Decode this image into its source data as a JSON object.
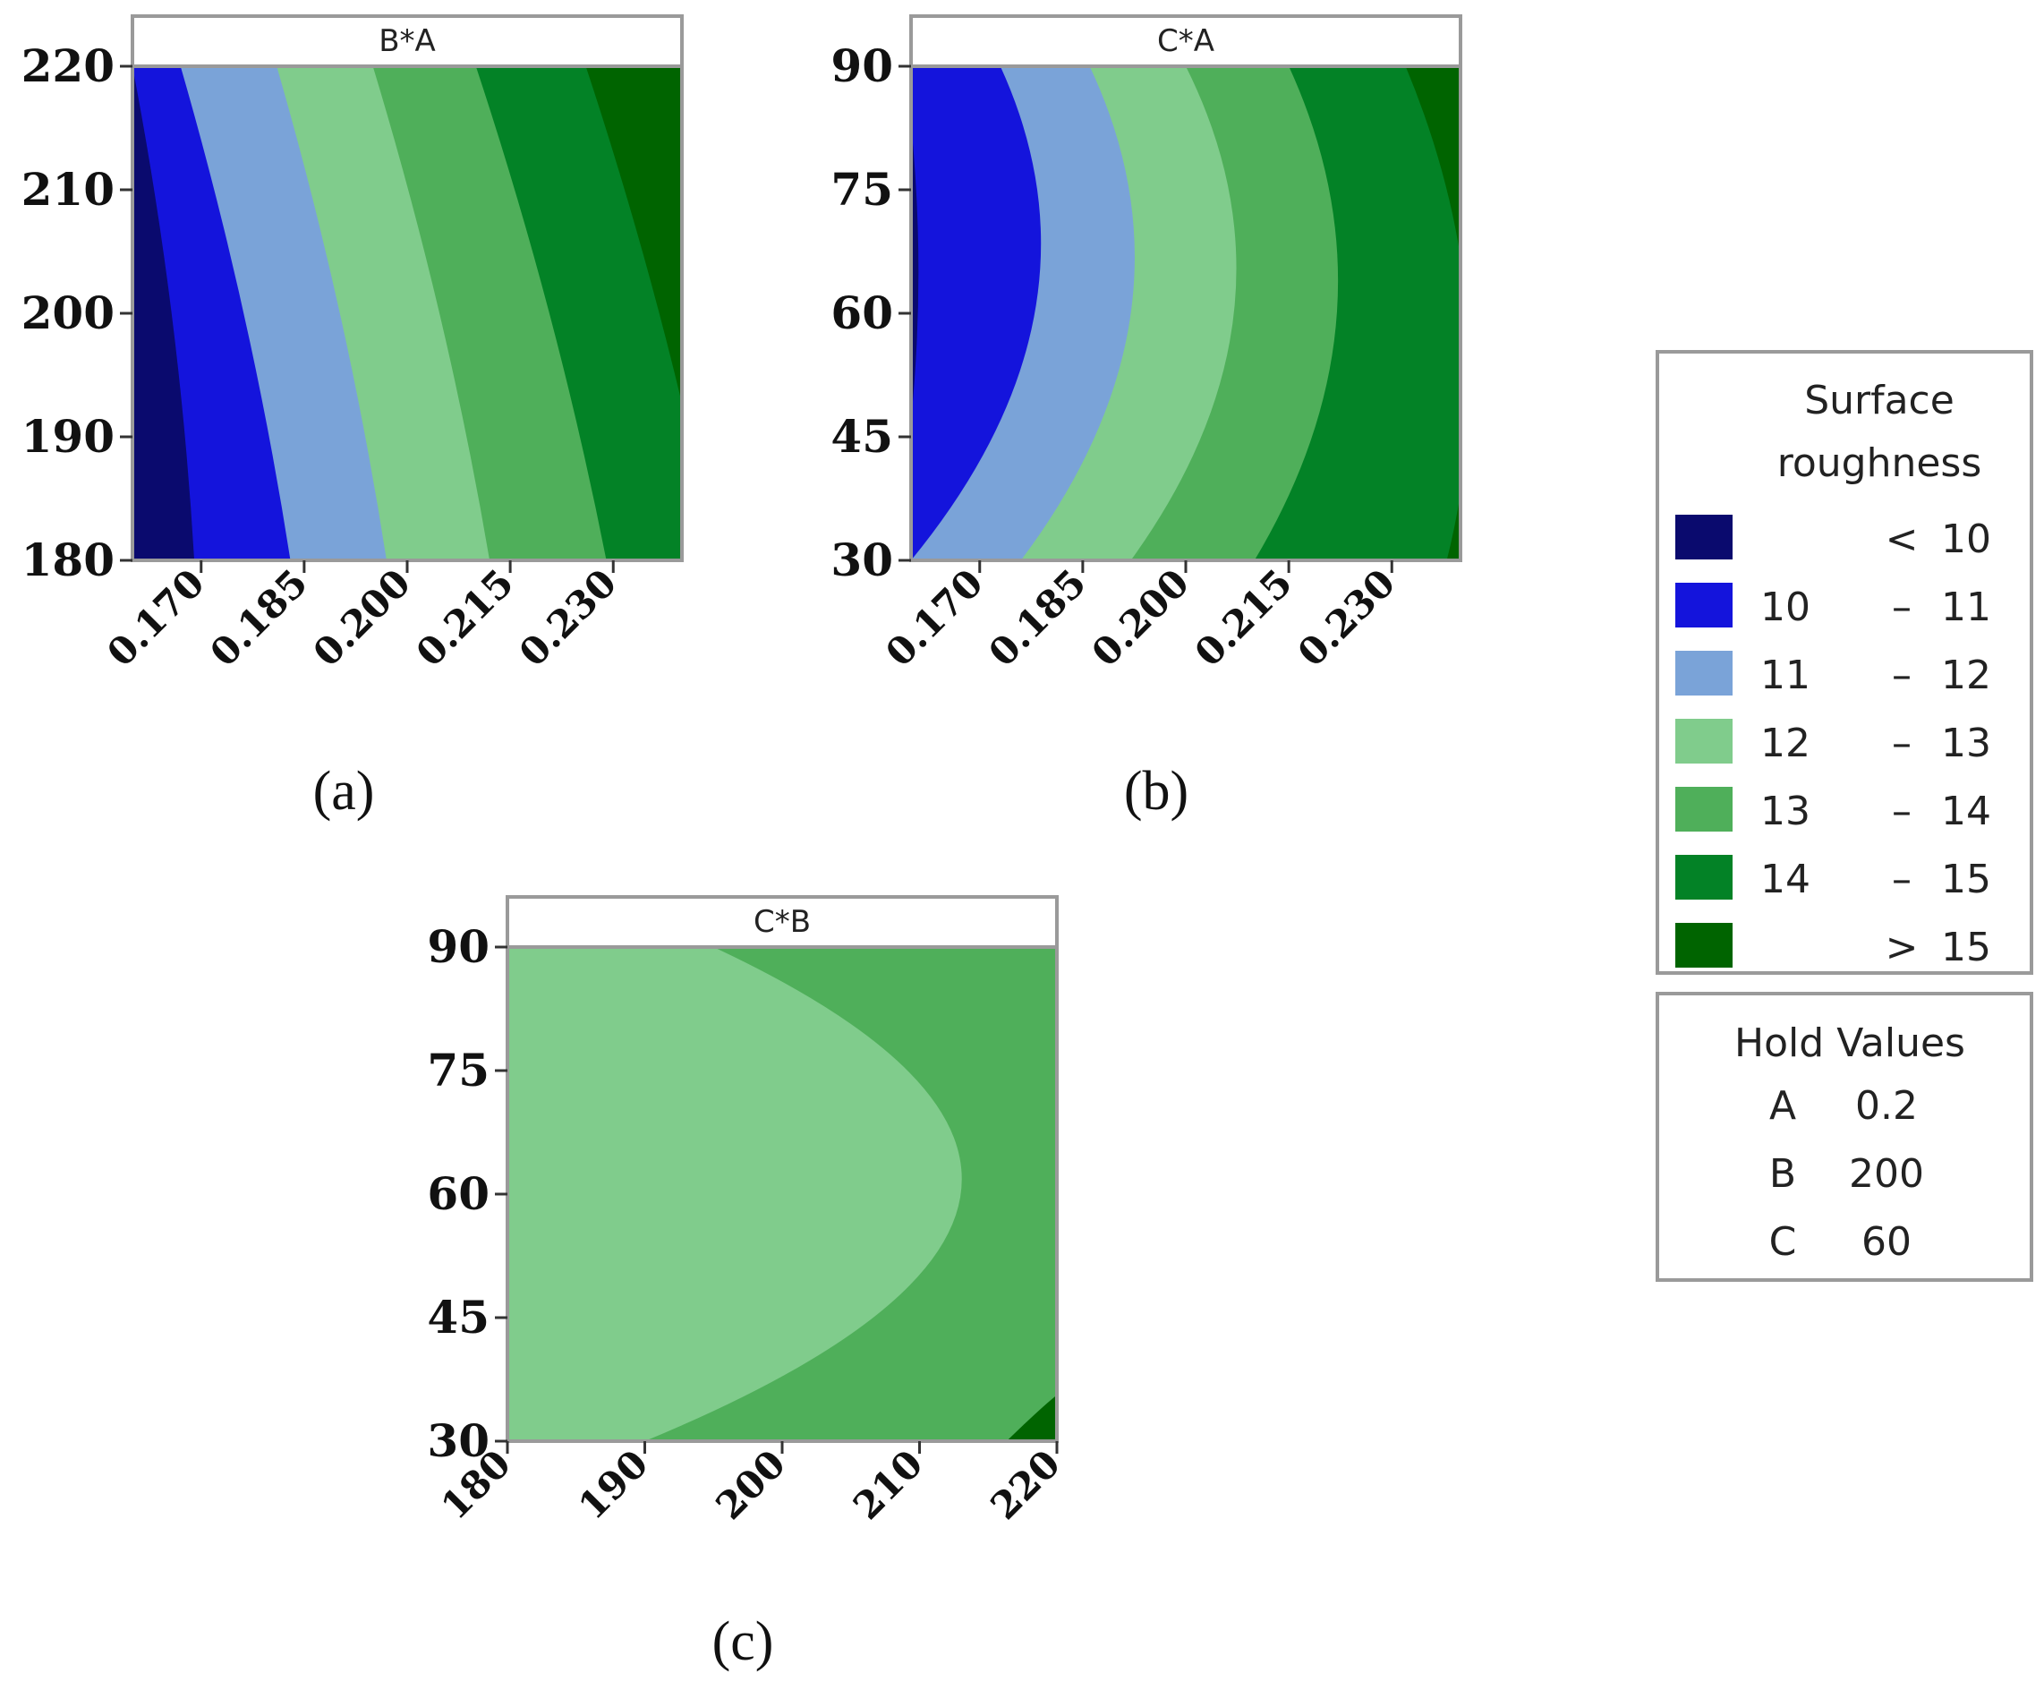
{
  "legend": {
    "title_line1": "Surface",
    "title_line2": "roughness",
    "items": [
      {
        "low": "",
        "sep": "<",
        "high": "10",
        "color": "#0a0a6e"
      },
      {
        "low": "10",
        "sep": "–",
        "high": "11",
        "color": "#1414dc"
      },
      {
        "low": "11",
        "sep": "–",
        "high": "12",
        "color": "#7aa3d8"
      },
      {
        "low": "12",
        "sep": "–",
        "high": "13",
        "color": "#80cc8c"
      },
      {
        "low": "13",
        "sep": "–",
        "high": "14",
        "color": "#4faf5a"
      },
      {
        "low": "14",
        "sep": "–",
        "high": "15",
        "color": "#038226"
      },
      {
        "low": "",
        "sep": ">",
        "high": "15",
        "color": "#006400"
      }
    ]
  },
  "hold_values": {
    "title": "Hold Values",
    "rows": [
      {
        "name": "A",
        "value": "0.2"
      },
      {
        "name": "B",
        "value": "200"
      },
      {
        "name": "C",
        "value": "60"
      }
    ]
  },
  "chart_data": [
    {
      "type": "heatmap",
      "caption": "(a)",
      "title": "B*A",
      "xlabel": "",
      "ylabel": "",
      "xticks": [
        "0.170",
        "0.185",
        "0.200",
        "0.215",
        "0.230"
      ],
      "yticks": [
        "220",
        "210",
        "200",
        "190",
        "180"
      ],
      "xlim": [
        0.16,
        0.24
      ],
      "ylim": [
        180,
        220
      ],
      "bands": [
        {
          "level": "< 10",
          "boundary_at_ymin": 0.169,
          "boundary_at_ymax": 0.16
        },
        {
          "level": "10 – 11",
          "boundary_at_ymin": 0.183,
          "boundary_at_ymax": 0.167
        },
        {
          "level": "11 – 12",
          "boundary_at_ymin": 0.197,
          "boundary_at_ymax": 0.181
        },
        {
          "level": "12 – 13",
          "boundary_at_ymin": 0.212,
          "boundary_at_ymax": 0.195
        },
        {
          "level": "13 – 14",
          "boundary_at_ymin": 0.229,
          "boundary_at_ymax": 0.21
        },
        {
          "level": "14 – 15",
          "boundary_at_ymin": 0.245,
          "boundary_at_ymax": 0.226
        }
      ]
    },
    {
      "type": "heatmap",
      "caption": "(b)",
      "title": "C*A",
      "xlabel": "",
      "ylabel": "",
      "xticks": [
        "0.170",
        "0.185",
        "0.200",
        "0.215",
        "0.230"
      ],
      "yticks": [
        "90",
        "75",
        "60",
        "45",
        "30"
      ],
      "xlim": [
        0.16,
        0.24
      ],
      "ylim": [
        30,
        90
      ],
      "bands": [
        {
          "level": "< 10",
          "boundary_at_ymin": 0.157,
          "boundary_at_ymid": 0.161,
          "boundary_at_ymax": 0.159
        },
        {
          "level": "10 – 11",
          "boundary_at_ymin": 0.16,
          "boundary_at_ymid": 0.178,
          "boundary_at_ymax": 0.173
        },
        {
          "level": "11 – 12",
          "boundary_at_ymin": 0.176,
          "boundary_at_ymid": 0.192,
          "boundary_at_ymax": 0.186
        },
        {
          "level": "12 – 13",
          "boundary_at_ymin": 0.192,
          "boundary_at_ymid": 0.207,
          "boundary_at_ymax": 0.2
        },
        {
          "level": "13 – 14",
          "boundary_at_ymin": 0.21,
          "boundary_at_ymid": 0.222,
          "boundary_at_ymax": 0.215
        },
        {
          "level": "14 – 15",
          "boundary_at_ymin": 0.238,
          "boundary_at_ymid": 0.241,
          "boundary_at_ymax": 0.232
        }
      ]
    },
    {
      "type": "heatmap",
      "caption": "(c)",
      "title": "C*B",
      "xlabel": "",
      "ylabel": "",
      "xticks": [
        "180",
        "190",
        "200",
        "210",
        "220"
      ],
      "yticks": [
        "90",
        "75",
        "60",
        "45",
        "30"
      ],
      "xlim": [
        180,
        220
      ],
      "ylim": [
        30,
        90
      ],
      "bands": [
        {
          "level": "12 – 13",
          "boundary_at_ymin": 190,
          "boundary_at_ymid": 213,
          "boundary_at_ymax": 195
        },
        {
          "level": "13 – 14",
          "corner_region": "bottom-right",
          "corner_x": 216,
          "corner_y": 36
        }
      ]
    }
  ]
}
